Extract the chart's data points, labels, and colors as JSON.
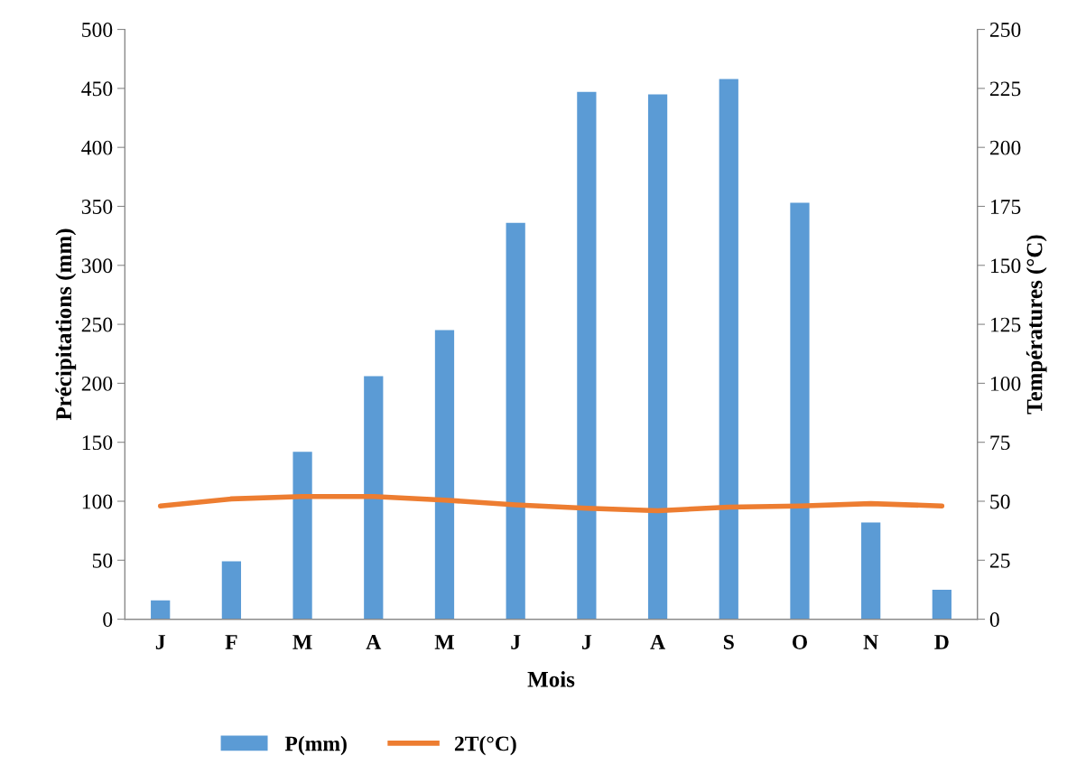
{
  "chart_data": {
    "type": "bar",
    "xlabel": "Mois",
    "ylabel": "Précipitations (mm)",
    "y2label": "Températures (°C)",
    "categories": [
      "J",
      "F",
      "M",
      "A",
      "M",
      "J",
      "J",
      "A",
      "S",
      "O",
      "N",
      "D"
    ],
    "series": [
      {
        "name": "P(mm)",
        "color": "#5b9bd5",
        "values": [
          16,
          49,
          142,
          206,
          245,
          336,
          447,
          445,
          458,
          353,
          82,
          25
        ]
      },
      {
        "name": "2T(°C)",
        "type": "line",
        "axis": "y2",
        "color": "#ed7d31",
        "values": [
          48,
          51,
          52,
          52,
          50.5,
          48.5,
          47,
          46,
          47.5,
          48,
          49,
          48
        ]
      }
    ],
    "ylim": [
      0,
      500
    ],
    "yticks": [
      0,
      50,
      100,
      150,
      200,
      250,
      300,
      350,
      400,
      450,
      500
    ],
    "y2lim": [
      0,
      250
    ],
    "y2ticks": [
      0,
      25,
      50,
      75,
      100,
      125,
      150,
      175,
      200,
      225,
      250
    ],
    "grid": false,
    "legend": "bottom left"
  }
}
